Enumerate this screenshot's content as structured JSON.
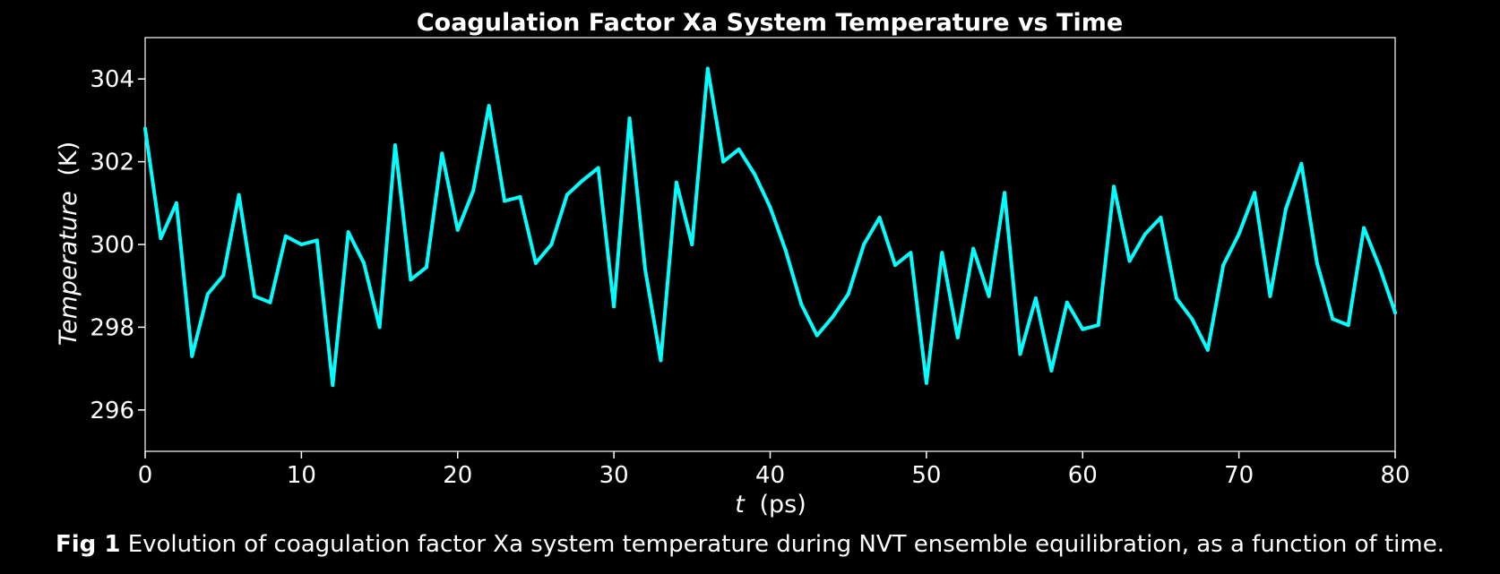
{
  "chart_data": {
    "type": "line",
    "title": "Coagulation Factor Xa System Temperature vs Time",
    "xlabel": {
      "var": "t",
      "unit": "(ps)"
    },
    "ylabel": {
      "var": "Temperature",
      "unit": "(K)"
    },
    "xlim": [
      0,
      80
    ],
    "ylim": [
      295,
      305
    ],
    "xticks": [
      "0",
      "10",
      "20",
      "30",
      "40",
      "50",
      "60",
      "70",
      "80"
    ],
    "yticks": [
      "296",
      "298",
      "300",
      "302",
      "304"
    ],
    "grid": false,
    "series": [
      {
        "color": "#00ffff",
        "x": [
          0,
          1,
          2,
          3,
          4,
          5,
          6,
          7,
          8,
          9,
          10,
          11,
          12,
          13,
          14,
          15,
          16,
          17,
          18,
          19,
          20,
          21,
          22,
          23,
          24,
          25,
          26,
          27,
          28,
          29,
          30,
          31,
          32,
          33,
          34,
          35,
          36,
          37,
          38,
          39,
          40,
          41,
          42,
          43,
          44,
          45,
          46,
          47,
          48,
          49,
          50,
          51,
          52,
          53,
          54,
          55,
          56,
          57,
          58,
          59,
          60,
          61,
          62,
          63,
          64,
          65,
          66,
          67,
          68,
          69,
          70,
          71,
          72,
          73,
          74,
          75,
          76,
          77,
          78,
          79,
          80
        ],
        "y": [
          302.8,
          300.15,
          301.0,
          297.3,
          298.8,
          299.25,
          301.2,
          298.75,
          298.6,
          300.2,
          300.0,
          300.1,
          296.6,
          300.3,
          299.55,
          298.0,
          302.4,
          299.15,
          299.45,
          302.2,
          300.35,
          301.3,
          303.35,
          301.05,
          301.15,
          299.55,
          300.0,
          301.2,
          301.55,
          301.85,
          298.5,
          303.05,
          299.4,
          297.2,
          301.5,
          300.0,
          304.25,
          302.0,
          302.3,
          301.7,
          300.9,
          299.85,
          298.55,
          297.8,
          298.25,
          298.8,
          300.0,
          300.65,
          299.5,
          299.8,
          296.65,
          299.8,
          297.75,
          299.9,
          298.75,
          301.25,
          297.35,
          298.7,
          296.95,
          298.6,
          297.95,
          298.05,
          301.4,
          299.6,
          300.25,
          300.65,
          298.7,
          298.2,
          297.45,
          299.5,
          300.25,
          301.25,
          298.75,
          300.85,
          301.95,
          299.55,
          298.2,
          298.05,
          300.4,
          299.45,
          298.35
        ]
      }
    ]
  },
  "caption": {
    "lead": "Fig 1",
    "text": "Evolution of coagulation factor Xa system temperature during NVT ensemble equilibration, as a function of time."
  }
}
